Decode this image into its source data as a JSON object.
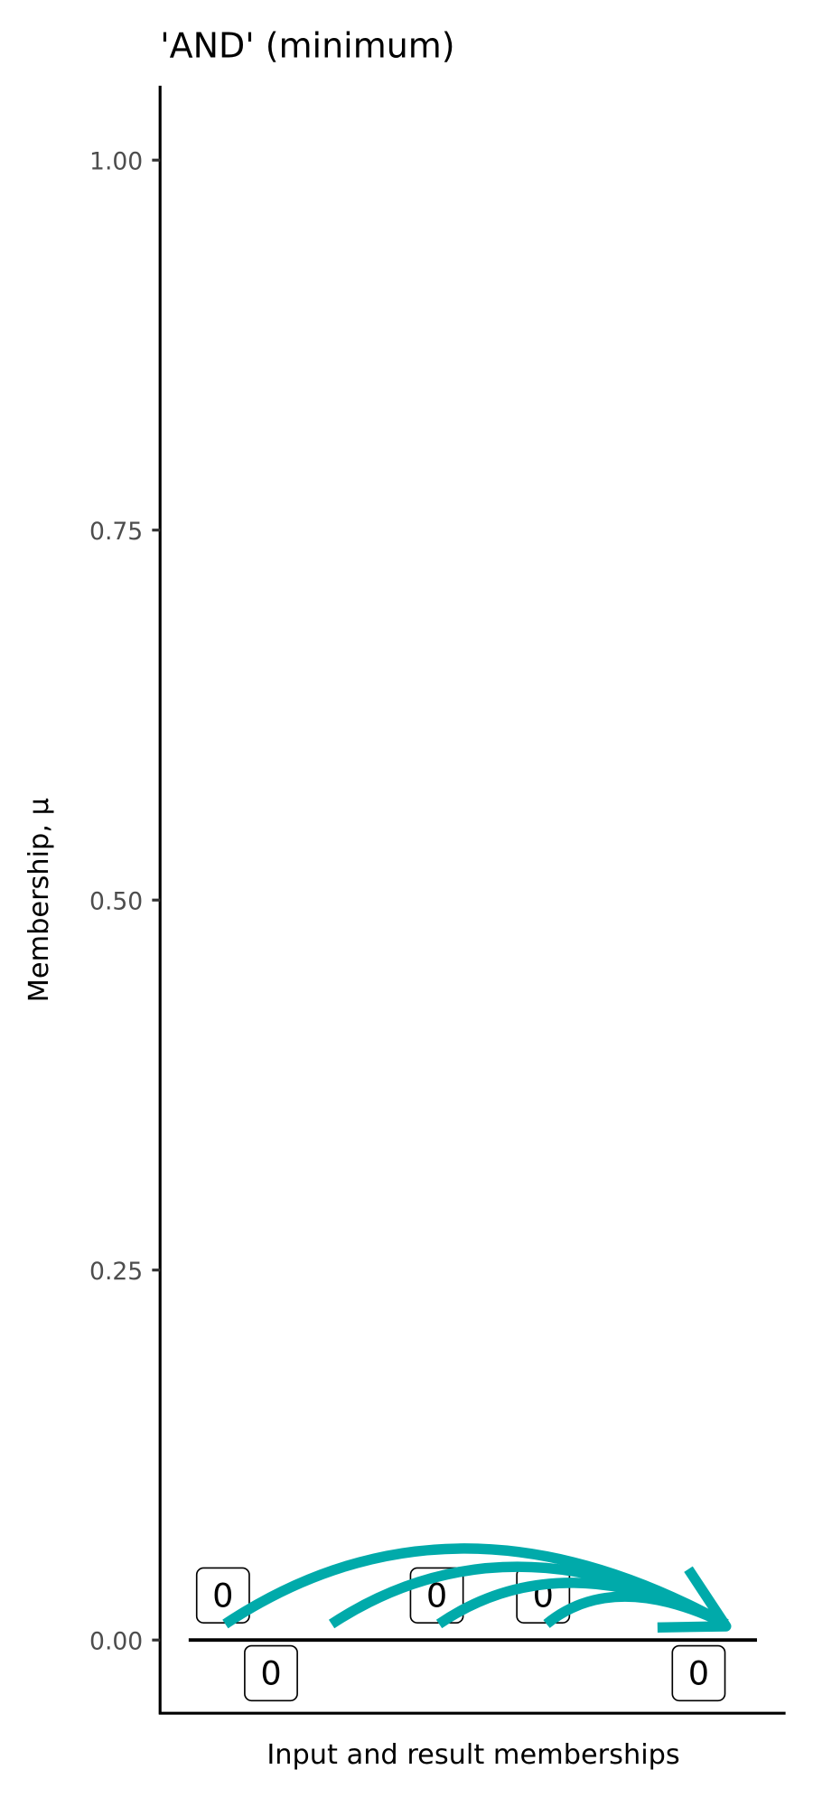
{
  "chart_data": {
    "type": "line",
    "title": "'AND' (minimum)",
    "xlabel": "Input and result memberships",
    "ylabel": "Membership, μ",
    "ylim": [
      -0.05,
      1.05
    ],
    "yticks": [
      0,
      0.25,
      0.5,
      0.75,
      1
    ],
    "ytick_labels": [
      "0.00",
      "0.25",
      "0.50",
      "0.75",
      "1.00"
    ],
    "grid": false,
    "inputs": [
      {
        "label": "0",
        "value": 0
      },
      {
        "label": "0",
        "value": 0
      },
      {
        "label": "0",
        "value": 0
      },
      {
        "label": "0",
        "value": 0
      }
    ],
    "result": {
      "label": "0",
      "value": 0
    },
    "extra_label": "0",
    "arrow_color": "#00AAAA",
    "line_color": "#000000"
  }
}
